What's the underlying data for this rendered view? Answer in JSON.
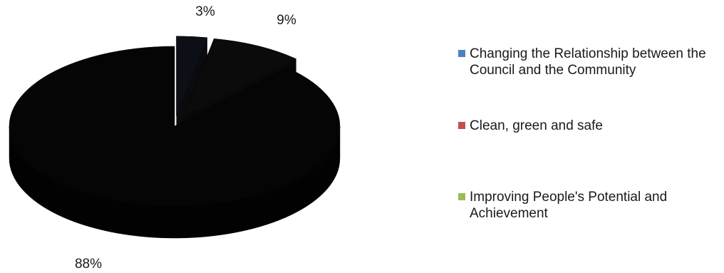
{
  "chart_data": {
    "type": "pie",
    "title": "",
    "categories": [
      "Changing the Relationship between the Council and the Community",
      "Clean, green and safe",
      "Improving People's Potential and Achievement"
    ],
    "values": [
      3,
      9,
      88
    ],
    "value_labels": [
      "3%",
      "9%",
      "88%"
    ],
    "exploded": [
      true,
      true,
      false
    ],
    "style": "3d",
    "legend_position": "right",
    "colors": {
      "legend_swatches": [
        "#4f81bd",
        "#c0504d",
        "#9bbb59"
      ],
      "slices": [
        "#0d0f16",
        "#0c0b0b",
        "#050505"
      ],
      "slice_sides": [
        "#0a0a0f",
        "#090707",
        "#020202"
      ]
    }
  }
}
